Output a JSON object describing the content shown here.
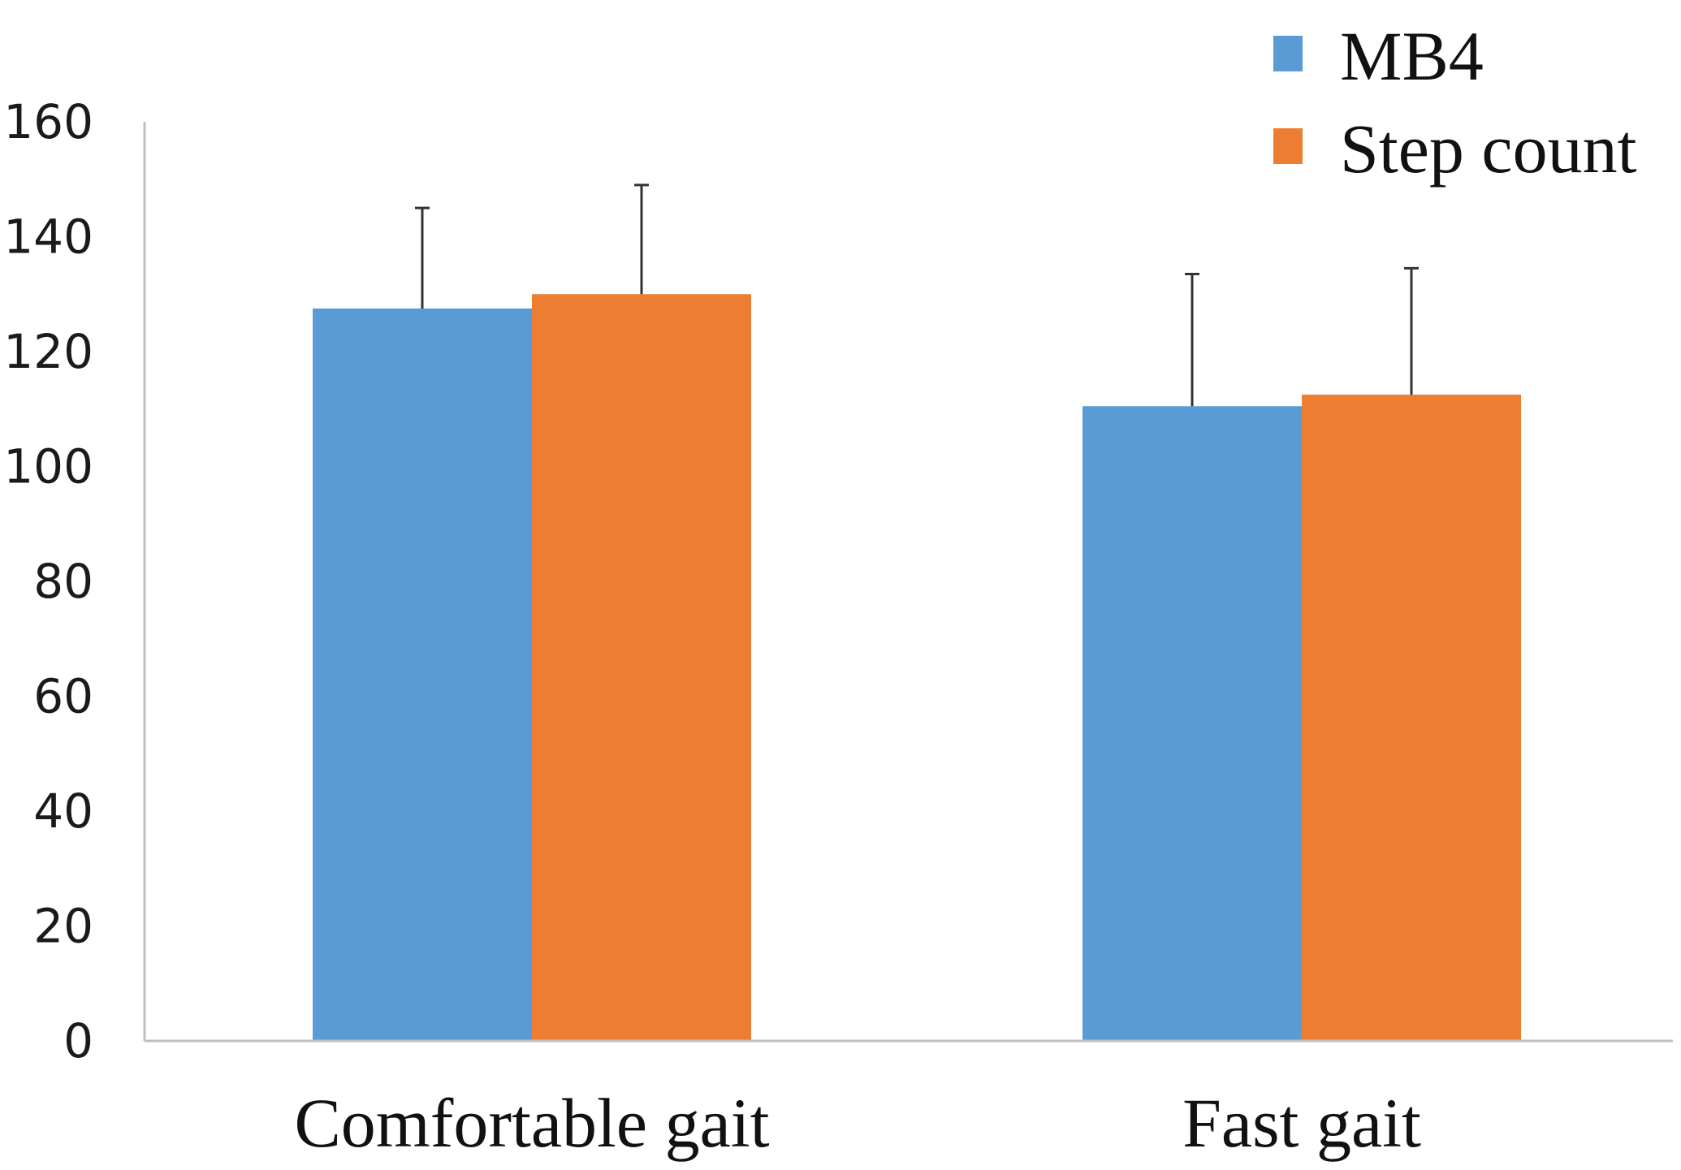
{
  "chart_data": {
    "type": "bar",
    "title": "",
    "xlabel": "",
    "ylabel": "",
    "categories": [
      "Comfortable gait",
      "Fast gait"
    ],
    "series": [
      {
        "name": "MB4",
        "color": "#5B9BD5",
        "values": [
          127.5,
          110.5
        ],
        "error": [
          17.5,
          23
        ]
      },
      {
        "name": "Step count",
        "color": "#ED7D31",
        "values": [
          130,
          112.5
        ],
        "error": [
          19,
          22
        ]
      }
    ],
    "ylim": [
      0,
      160
    ],
    "yticks": [
      "0",
      "20",
      "40",
      "60",
      "80",
      "100",
      "120",
      "140",
      "160"
    ],
    "legend_position": "top-right",
    "grid": false
  }
}
